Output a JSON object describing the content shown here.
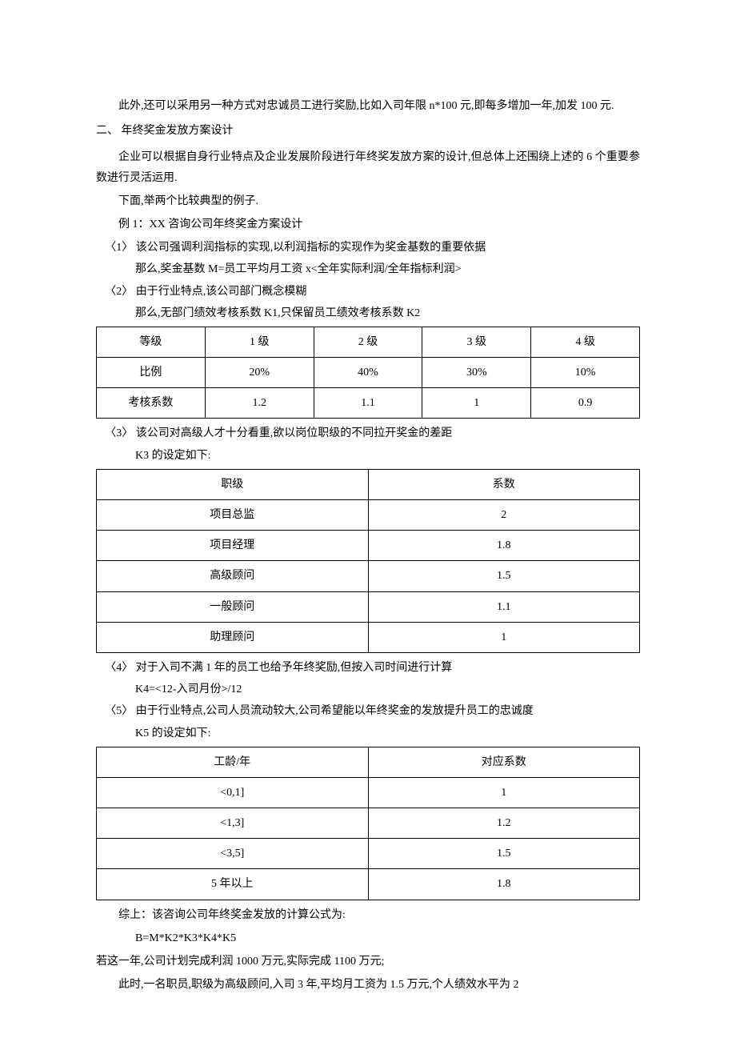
{
  "paragraphs": {
    "p1": "此外,还可以采用另一种方式对忠诚员工进行奖励,比如入司年限 n*100 元,即每多增加一年,加发 100 元.",
    "heading2": "二、      年终奖金发放方案设计",
    "p2a": "企业可以根据自身行业特点及企业发展阶段进行年终奖发放方案的设计,但总体上还围绕上述的 6 个重要参数进行灵活运用.",
    "p2b": "下面,举两个比较典型的例子.",
    "p2c": "例 1：XX 咨询公司年终奖金方案设计",
    "li1": "〈1〉   该公司强调利润指标的实现,以利润指标的实现作为奖金基数的重要依据",
    "li1b": "那么,奖金基数 M=员工平均月工资 x<全年实际利润/全年指标利润>",
    "li2": "〈2〉   由于行业特点,该公司部门概念模糊",
    "li2b": "那么,无部门绩效考核系数 K1,只保留员工绩效考核系数 K2",
    "li3": "〈3〉   该公司对高级人才十分看重,欲以岗位职级的不同拉开奖金的差距",
    "li3b": "K3 的设定如下:",
    "li4": "〈4〉   对于入司不满 1 年的员工也给予年终奖励,但按入司时间进行计算",
    "li4b": "K4=<12-入司月份>/12",
    "li5": "〈5〉   由于行业特点,公司人员流动较大,公司希望能以年终奖金的发放提升员工的忠诚度",
    "li5b": "K5 的设定如下:",
    "summary": "综上：该咨询公司年终奖金发放的计算公式为:",
    "formula": "B=M*K2*K3*K4*K5",
    "scenario1": "若这一年,公司计划完成利润 1000 万元,实际完成 1100 万元;",
    "scenario2": "此时,一名职员,职级为高级顾问,入司 3 年,平均月工资为 1.5 万元,个人绩效水平为 2"
  },
  "table1": {
    "rows": [
      [
        "等级",
        "1 级",
        "2 级",
        "3 级",
        "4 级"
      ],
      [
        "比例",
        "20%",
        "40%",
        "30%",
        "10%"
      ],
      [
        "考核系数",
        "1.2",
        "1.1",
        "1",
        "0.9"
      ]
    ]
  },
  "table2": {
    "rows": [
      [
        "职级",
        "系数"
      ],
      [
        "项目总监",
        "2"
      ],
      [
        "项目经理",
        "1.8"
      ],
      [
        "高级顾问",
        "1.5"
      ],
      [
        "一般顾问",
        "1.1"
      ],
      [
        "助理顾问",
        "1"
      ]
    ]
  },
  "table3": {
    "rows": [
      [
        "工龄/年",
        "对应系数"
      ],
      [
        "<0,1]",
        "1"
      ],
      [
        "<1,3]",
        "1.2"
      ],
      [
        "<3,5]",
        "1.5"
      ],
      [
        "5 年以上",
        "1.8"
      ]
    ]
  },
  "footer": "."
}
